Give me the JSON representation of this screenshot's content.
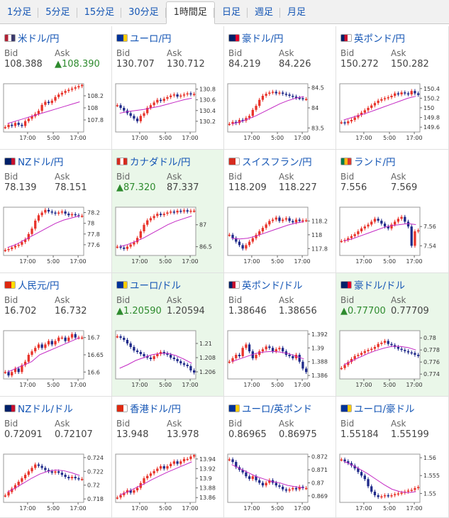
{
  "tabs": [
    {
      "label": "1分足"
    },
    {
      "label": "5分足"
    },
    {
      "label": "15分足"
    },
    {
      "label": "30分足"
    },
    {
      "label": "1時間足",
      "active": true
    },
    {
      "label": "日足"
    },
    {
      "label": "週足"
    },
    {
      "label": "月足"
    }
  ],
  "labels": {
    "bid": "Bid",
    "ask": "Ask"
  },
  "pairs": [
    {
      "name": "米ドル/円",
      "flag": "us-flag-icon",
      "bid": "108.388",
      "ask": "▲108.390",
      "ask_up": true,
      "chart_data": {
        "type": "candlestick",
        "x_ticks": [
          "17:00",
          "5:00",
          "17:00"
        ],
        "y_ticks": [
          "108.2",
          "108",
          "107.8"
        ],
        "ylim": [
          107.6,
          108.4
        ],
        "close": [
          107.68,
          107.72,
          107.7,
          107.75,
          107.72,
          107.7,
          107.78,
          107.82,
          107.86,
          107.9,
          107.95,
          108.05,
          108.1,
          108.08,
          108.12,
          108.18,
          108.22,
          108.25,
          108.28,
          108.3,
          108.32,
          108.34,
          108.36,
          108.38
        ],
        "ma": [
          107.74,
          107.78,
          107.82,
          107.86,
          107.9,
          107.94,
          107.98,
          108.02,
          108.06,
          108.1
        ]
      }
    },
    {
      "name": "ユーロ/円",
      "flag": "eu-flag-icon",
      "bid": "130.707",
      "ask": "130.712",
      "chart_data": {
        "type": "candlestick",
        "x_ticks": [
          "17:00",
          "5:00",
          "17:00"
        ],
        "y_ticks": [
          "130.8",
          "130.6",
          "130.4",
          "130.2"
        ],
        "ylim": [
          130.0,
          130.9
        ],
        "close": [
          130.5,
          130.45,
          130.4,
          130.35,
          130.3,
          130.25,
          130.2,
          130.3,
          130.35,
          130.45,
          130.5,
          130.55,
          130.6,
          130.58,
          130.62,
          130.65,
          130.68,
          130.7,
          130.66,
          130.68,
          130.7,
          130.72,
          130.7,
          130.71
        ],
        "ma": [
          130.35,
          130.38,
          130.4,
          130.42,
          130.45,
          130.48,
          130.52,
          130.56,
          130.6,
          130.63
        ]
      }
    },
    {
      "name": "豪ドル/円",
      "flag": "au-flag-icon",
      "bid": "84.219",
      "ask": "84.226",
      "chart_data": {
        "type": "candlestick",
        "x_ticks": [
          "17:00",
          "5:00",
          "17:00"
        ],
        "y_ticks": [
          "84.5",
          "84",
          "83.5"
        ],
        "ylim": [
          83.4,
          84.6
        ],
        "close": [
          83.6,
          83.65,
          83.62,
          83.7,
          83.68,
          83.75,
          83.8,
          83.95,
          84.05,
          84.2,
          84.3,
          84.35,
          84.38,
          84.4,
          84.36,
          84.38,
          84.35,
          84.33,
          84.3,
          84.28,
          84.25,
          84.24,
          84.22,
          84.22
        ],
        "ma": [
          83.6,
          83.65,
          83.72,
          83.8,
          83.9,
          84.0,
          84.1,
          84.18,
          84.24,
          84.28
        ]
      }
    },
    {
      "name": "英ポンド/円",
      "flag": "uk-flag-icon",
      "bid": "150.272",
      "ask": "150.282",
      "chart_data": {
        "type": "candlestick",
        "x_ticks": [
          "17:00",
          "5:00",
          "17:00"
        ],
        "y_ticks": [
          "150.4",
          "150.2",
          "150",
          "149.8",
          "149.6"
        ],
        "ylim": [
          149.5,
          150.5
        ],
        "close": [
          149.7,
          149.68,
          149.72,
          149.75,
          149.8,
          149.85,
          149.9,
          149.95,
          150.0,
          150.05,
          150.1,
          150.15,
          150.18,
          150.2,
          150.22,
          150.25,
          150.3,
          150.28,
          150.32,
          150.3,
          150.28,
          150.35,
          150.3,
          150.27
        ],
        "ma": [
          149.75,
          149.8,
          149.85,
          149.9,
          149.96,
          150.02,
          150.08,
          150.14,
          150.2,
          150.24
        ]
      }
    },
    {
      "name": "NZドル/円",
      "flag": "nz-flag-icon",
      "bid": "78.139",
      "ask": "78.151",
      "chart_data": {
        "type": "candlestick",
        "x_ticks": [
          "17:00",
          "5:00",
          "17:00"
        ],
        "y_ticks": [
          "78.2",
          "78",
          "77.8",
          "77.6"
        ],
        "ylim": [
          77.4,
          78.3
        ],
        "close": [
          77.5,
          77.52,
          77.55,
          77.58,
          77.6,
          77.65,
          77.7,
          77.8,
          77.9,
          78.05,
          78.15,
          78.2,
          78.25,
          78.22,
          78.2,
          78.18,
          78.2,
          78.22,
          78.18,
          78.15,
          78.17,
          78.15,
          78.14,
          78.14
        ],
        "ma": [
          77.55,
          77.6,
          77.68,
          77.76,
          77.84,
          77.92,
          78.0,
          78.06,
          78.1,
          78.14
        ]
      }
    },
    {
      "name": "カナダドル/円",
      "flag": "ca-flag-icon",
      "bid": "▲87.320",
      "bid_up": true,
      "ask": "87.337",
      "highlight": true,
      "chart_data": {
        "type": "candlestick",
        "x_ticks": [
          "17:00",
          "5:00",
          "17:00"
        ],
        "y_ticks": [
          "87",
          "86.5"
        ],
        "ylim": [
          86.3,
          87.4
        ],
        "close": [
          86.5,
          86.48,
          86.45,
          86.5,
          86.55,
          86.6,
          86.7,
          86.85,
          87.0,
          87.1,
          87.15,
          87.2,
          87.25,
          87.22,
          87.25,
          87.28,
          87.3,
          87.28,
          87.32,
          87.3,
          87.33,
          87.3,
          87.32,
          87.32
        ],
        "ma": [
          86.5,
          86.55,
          86.62,
          86.7,
          86.8,
          86.9,
          87.0,
          87.08,
          87.14,
          87.2
        ]
      }
    },
    {
      "name": "スイスフラン/円",
      "flag": "ch-flag-icon",
      "bid": "118.209",
      "ask": "118.227",
      "chart_data": {
        "type": "candlestick",
        "x_ticks": [
          "17:00",
          "5:00",
          "17:00"
        ],
        "y_ticks": [
          "118.2",
          "118",
          "117.8"
        ],
        "ylim": [
          117.7,
          118.4
        ],
        "close": [
          118.0,
          117.95,
          117.9,
          117.85,
          117.8,
          117.85,
          117.9,
          117.95,
          118.0,
          118.05,
          118.1,
          118.15,
          118.2,
          118.22,
          118.25,
          118.2,
          118.22,
          118.24,
          118.2,
          118.18,
          118.22,
          118.2,
          118.21,
          118.21
        ],
        "ma": [
          117.95,
          117.94,
          117.95,
          117.98,
          118.02,
          118.06,
          118.1,
          118.14,
          118.17,
          118.19
        ]
      }
    },
    {
      "name": "ランド/円",
      "flag": "za-flag-icon",
      "bid": "7.556",
      "ask": "7.569",
      "chart_data": {
        "type": "candlestick",
        "x_ticks": [
          "17:00",
          "5:00",
          "17:00"
        ],
        "y_ticks": [
          "7.56",
          "7.54"
        ],
        "ylim": [
          7.53,
          7.58
        ],
        "close": [
          7.545,
          7.546,
          7.548,
          7.55,
          7.552,
          7.555,
          7.558,
          7.56,
          7.562,
          7.565,
          7.568,
          7.566,
          7.563,
          7.56,
          7.558,
          7.562,
          7.565,
          7.568,
          7.57,
          7.565,
          7.56,
          7.54,
          7.555,
          7.556
        ],
        "ma": [
          7.545,
          7.547,
          7.55,
          7.553,
          7.556,
          7.559,
          7.561,
          7.562,
          7.563,
          7.562
        ]
      }
    },
    {
      "name": "人民元/円",
      "flag": "cn-flag-icon",
      "bid": "16.702",
      "ask": "16.732",
      "chart_data": {
        "type": "candlestick",
        "x_ticks": [
          "17:00",
          "5:00",
          "17:00"
        ],
        "y_ticks": [
          "16.7",
          "16.65",
          "16.6"
        ],
        "ylim": [
          16.58,
          16.72
        ],
        "close": [
          16.6,
          16.59,
          16.6,
          16.61,
          16.6,
          16.62,
          16.63,
          16.65,
          16.66,
          16.67,
          16.68,
          16.67,
          16.68,
          16.69,
          16.68,
          16.69,
          16.7,
          16.7,
          16.69,
          16.7,
          16.71,
          16.7,
          16.7,
          16.7
        ],
        "ma": [
          16.6,
          16.61,
          16.62,
          16.63,
          16.65,
          16.66,
          16.67,
          16.68,
          16.69,
          16.7
        ]
      }
    },
    {
      "name": "ユーロ/ドル",
      "flag": "eu-us-flag-icon",
      "bid": "▲1.20590",
      "bid_up": true,
      "ask": "1.20594",
      "highlight": true,
      "chart_data": {
        "type": "candlestick",
        "x_ticks": [
          "17:00",
          "5:00",
          "17:00"
        ],
        "y_ticks": [
          "1.21",
          "1.208",
          "1.206"
        ],
        "ylim": [
          1.205,
          1.2118
        ],
        "close": [
          1.211,
          1.2108,
          1.2105,
          1.21,
          1.2095,
          1.209,
          1.2088,
          1.2085,
          1.2082,
          1.208,
          1.2078,
          1.2082,
          1.2085,
          1.2088,
          1.2086,
          1.2084,
          1.208,
          1.2078,
          1.2075,
          1.2072,
          1.207,
          1.2068,
          1.2062,
          1.2059
        ],
        "ma": [
          1.2065,
          1.207,
          1.2076,
          1.208,
          1.2084,
          1.2086,
          1.2086,
          1.2083,
          1.2078,
          1.2072
        ]
      }
    },
    {
      "name": "英ポンド/ドル",
      "flag": "uk-us-flag-icon",
      "bid": "1.38646",
      "ask": "1.38656",
      "chart_data": {
        "type": "candlestick",
        "x_ticks": [
          "17:00",
          "5:00",
          "17:00"
        ],
        "y_ticks": [
          "1.392",
          "1.39",
          "1.388",
          "1.386"
        ],
        "ylim": [
          1.3855,
          1.3925
        ],
        "close": [
          1.388,
          1.3885,
          1.389,
          1.3888,
          1.39,
          1.3905,
          1.3895,
          1.3885,
          1.389,
          1.3895,
          1.3898,
          1.3902,
          1.39,
          1.3895,
          1.3898,
          1.39,
          1.3895,
          1.389,
          1.3888,
          1.3885,
          1.389,
          1.388,
          1.387,
          1.3865
        ],
        "ma": [
          1.388,
          1.3884,
          1.3888,
          1.3892,
          1.3894,
          1.3895,
          1.3894,
          1.3892,
          1.3888,
          1.3884
        ]
      }
    },
    {
      "name": "豪ドル/ドル",
      "flag": "au-us-flag-icon",
      "bid": "▲0.77700",
      "bid_up": true,
      "ask": "0.77709",
      "highlight": true,
      "chart_data": {
        "type": "candlestick",
        "x_ticks": [
          "17:00",
          "5:00",
          "17:00"
        ],
        "y_ticks": [
          "0.78",
          "0.778",
          "0.776",
          "0.774"
        ],
        "ylim": [
          0.7732,
          0.7812
        ],
        "close": [
          0.775,
          0.7755,
          0.776,
          0.7765,
          0.777,
          0.7772,
          0.7775,
          0.7778,
          0.778,
          0.7782,
          0.7785,
          0.779,
          0.7792,
          0.7795,
          0.779,
          0.7788,
          0.7785,
          0.7782,
          0.778,
          0.7778,
          0.7776,
          0.7775,
          0.7772,
          0.777
        ],
        "ma": [
          0.7755,
          0.7762,
          0.7768,
          0.7774,
          0.7779,
          0.7783,
          0.7786,
          0.7786,
          0.7784,
          0.778
        ]
      }
    },
    {
      "name": "NZドル/ドル",
      "flag": "nz-us-flag-icon",
      "bid": "0.72091",
      "ask": "0.72107",
      "chart_data": {
        "type": "candlestick",
        "x_ticks": [
          "17:00",
          "5:00",
          "17:00"
        ],
        "y_ticks": [
          "0.724",
          "0.722",
          "0.72",
          "0.718"
        ],
        "ylim": [
          0.7175,
          0.7245
        ],
        "close": [
          0.7185,
          0.719,
          0.7195,
          0.72,
          0.7205,
          0.721,
          0.7215,
          0.722,
          0.7225,
          0.723,
          0.7228,
          0.7225,
          0.7222,
          0.722,
          0.7218,
          0.722,
          0.7218,
          0.7215,
          0.7212,
          0.721,
          0.7212,
          0.721,
          0.7209,
          0.7209
        ],
        "ma": [
          0.719,
          0.7196,
          0.7203,
          0.721,
          0.7216,
          0.722,
          0.7222,
          0.7221,
          0.7218,
          0.7214
        ]
      }
    },
    {
      "name": "香港ドル/円",
      "flag": "hk-flag-icon",
      "bid": "13.948",
      "ask": "13.978",
      "chart_data": {
        "type": "candlestick",
        "x_ticks": [
          "17:00",
          "5:00",
          "17:00"
        ],
        "y_ticks": [
          "13.94",
          "13.92",
          "13.9",
          "13.88",
          "13.86"
        ],
        "ylim": [
          13.85,
          13.95
        ],
        "close": [
          13.86,
          13.865,
          13.87,
          13.875,
          13.87,
          13.875,
          13.88,
          13.89,
          13.9,
          13.905,
          13.91,
          13.915,
          13.92,
          13.925,
          13.92,
          13.925,
          13.93,
          13.935,
          13.93,
          13.935,
          13.94,
          13.94,
          13.945,
          13.948
        ],
        "ma": [
          13.865,
          13.872,
          13.88,
          13.888,
          13.897,
          13.905,
          13.913,
          13.92,
          13.927,
          13.934
        ]
      }
    },
    {
      "name": "ユーロ/英ポンド",
      "flag": "eu-uk-flag-icon",
      "bid": "0.86965",
      "ask": "0.86975",
      "chart_data": {
        "type": "candlestick",
        "x_ticks": [
          "17:00",
          "5:00",
          "17:00"
        ],
        "y_ticks": [
          "0.872",
          "0.871",
          "0.87",
          "0.869"
        ],
        "ylim": [
          0.8685,
          0.8722
        ],
        "close": [
          0.8718,
          0.8716,
          0.8712,
          0.871,
          0.8708,
          0.8705,
          0.8703,
          0.8705,
          0.8702,
          0.87,
          0.8698,
          0.87,
          0.8702,
          0.87,
          0.8698,
          0.8697,
          0.8695,
          0.8694,
          0.8695,
          0.8696,
          0.8695,
          0.8697,
          0.8696,
          0.8696
        ],
        "ma": [
          0.8714,
          0.8711,
          0.8708,
          0.8705,
          0.8703,
          0.8701,
          0.87,
          0.8698,
          0.8697,
          0.8696
        ]
      }
    },
    {
      "name": "ユーロ/豪ドル",
      "flag": "eu-au-flag-icon",
      "bid": "1.55184",
      "ask": "1.55199",
      "chart_data": {
        "type": "candlestick",
        "x_ticks": [
          "17:00",
          "5:00",
          "17:00"
        ],
        "y_ticks": [
          "1.56",
          "1.555",
          "1.55"
        ],
        "ylim": [
          1.5475,
          1.561
        ],
        "close": [
          1.5595,
          1.559,
          1.5585,
          1.5578,
          1.557,
          1.556,
          1.555,
          1.554,
          1.552,
          1.5505,
          1.5495,
          1.549,
          1.5492,
          1.5495,
          1.5493,
          1.5495,
          1.5498,
          1.55,
          1.5502,
          1.5505,
          1.5508,
          1.551,
          1.5515,
          1.5518
        ],
        "ma": [
          1.559,
          1.558,
          1.5568,
          1.5555,
          1.554,
          1.5525,
          1.5512,
          1.5505,
          1.5502,
          1.5505
        ]
      }
    }
  ]
}
